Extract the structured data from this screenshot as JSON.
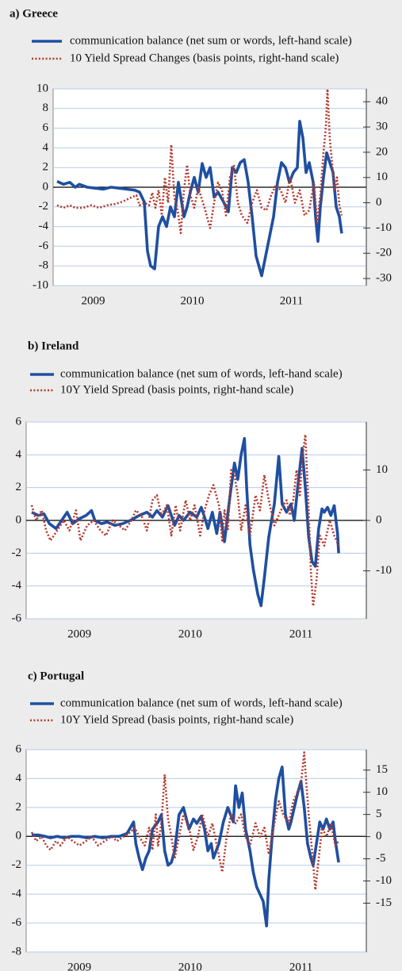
{
  "chart_data": [
    {
      "type": "line",
      "title": "a) Greece",
      "xlim": [
        2009.096,
        2012.256
      ],
      "xticks": [
        {
          "value": 2009.5,
          "label": "2009"
        },
        {
          "value": 2010.5,
          "label": "2010"
        },
        {
          "value": 2011.5,
          "label": "2011"
        }
      ],
      "ylim": [
        -10,
        10
      ],
      "yticks": [
        10,
        8,
        6,
        4,
        2,
        0,
        -2,
        -4,
        -6,
        -8,
        -10
      ],
      "y2lim": [
        -32.8,
        45.1
      ],
      "y2ticks": [
        40,
        30,
        20,
        10,
        0,
        -10,
        -20,
        -30
      ],
      "grid": true,
      "series": [
        {
          "name": "communication balance (net sum or words, left-hand scale)",
          "color": "#1f4fa0",
          "style": "solid",
          "x": [
            2009.136,
            2009.2,
            2009.264,
            2009.32,
            2009.36,
            2009.44,
            2009.52,
            2009.6,
            2009.68,
            2009.76,
            2009.84,
            2009.92,
            2009.968,
            2010.016,
            2010.048,
            2010.08,
            2010.12,
            2010.16,
            2010.2,
            2010.24,
            2010.28,
            2010.32,
            2010.36,
            2010.384,
            2010.416,
            2010.448,
            2010.48,
            2010.52,
            2010.56,
            2010.6,
            2010.64,
            2010.68,
            2010.72,
            2010.76,
            2010.816,
            2010.864,
            2010.904,
            2010.944,
            2010.984,
            2011.024,
            2011.064,
            2011.104,
            2011.144,
            2011.2,
            2011.24,
            2011.28,
            2011.32,
            2011.36,
            2011.4,
            2011.44,
            2011.48,
            2011.52,
            2011.56,
            2011.584,
            2011.616,
            2011.648,
            2011.68,
            2011.72,
            2011.744,
            2011.768,
            2011.792,
            2011.824,
            2011.856,
            2011.888,
            2011.92,
            2011.952,
            2011.984,
            2012.008
          ],
          "values": [
            0.6,
            0.3,
            0.5,
            0.0,
            0.3,
            0.0,
            -0.1,
            -0.2,
            0.0,
            -0.1,
            -0.2,
            -0.3,
            -0.5,
            -1.5,
            -6.5,
            -8.0,
            -8.3,
            -4,
            -3,
            -4,
            -2,
            -3,
            0.5,
            -1,
            -3,
            -2,
            -0.5,
            1.0,
            -0.5,
            2.4,
            1,
            2,
            -1,
            -0.5,
            -1.5,
            -2.5,
            2,
            1.5,
            2.5,
            2.8,
            0.5,
            -3,
            -7,
            -9,
            -7,
            -5,
            -3,
            0.5,
            2.5,
            2,
            0.5,
            1.5,
            2,
            6.7,
            5,
            1.5,
            2.5,
            0.5,
            -3,
            -5.5,
            -2,
            1,
            3.5,
            2.5,
            1.5,
            -2,
            -3,
            -4.7
          ]
        },
        {
          "name": "10 Yield Spread Changes (basis points, right-hand scale)",
          "color": "#b5382b",
          "style": "dotted",
          "axis": "y2",
          "x": [
            2009.136,
            2009.2,
            2009.264,
            2009.32,
            2009.4,
            2009.48,
            2009.56,
            2009.64,
            2009.72,
            2009.8,
            2009.88,
            2009.936,
            2009.968,
            2010.016,
            2010.064,
            2010.096,
            2010.128,
            2010.16,
            2010.192,
            2010.224,
            2010.256,
            2010.288,
            2010.32,
            2010.352,
            2010.384,
            2010.416,
            2010.448,
            2010.48,
            2010.52,
            2010.56,
            2010.624,
            2010.68,
            2010.72,
            2010.76,
            2010.8,
            2010.84,
            2010.88,
            2010.92,
            2010.96,
            2011.0,
            2011.056,
            2011.104,
            2011.152,
            2011.2,
            2011.248,
            2011.296,
            2011.344,
            2011.392,
            2011.44,
            2011.488,
            2011.536,
            2011.584,
            2011.632,
            2011.68,
            2011.728,
            2011.76,
            2011.792,
            2011.824,
            2011.848,
            2011.864,
            2011.888,
            2011.912,
            2011.936,
            2011.96,
            2011.984,
            2012.008
          ],
          "values": [
            -1,
            -2,
            -1,
            -2,
            -2,
            -1,
            -2,
            -1,
            -0.5,
            0.5,
            2,
            3,
            -1,
            0,
            -1,
            4,
            -2,
            5,
            -5,
            10,
            0,
            23,
            2,
            -3,
            -12,
            5,
            15,
            3,
            -2,
            6,
            -2,
            -10,
            0,
            8,
            5,
            -5,
            10,
            15,
            0,
            -5,
            -8,
            0,
            5,
            -2,
            -3,
            3,
            7,
            5,
            0,
            10,
            0,
            5,
            -5,
            -3,
            8,
            -8,
            3,
            20,
            30,
            45,
            25,
            15,
            5,
            10,
            -1,
            -5
          ]
        }
      ]
    },
    {
      "type": "line",
      "title": "b) Ireland",
      "xlim": [
        2009.02,
        2012.09
      ],
      "xticks": [
        {
          "value": 2009.5,
          "label": "2009"
        },
        {
          "value": 2010.5,
          "label": "2010"
        },
        {
          "value": 2011.5,
          "label": "2011"
        }
      ],
      "ylim": [
        -6,
        6
      ],
      "yticks": [
        6,
        4,
        2,
        0,
        -2,
        -4,
        -6
      ],
      "y2lim": [
        -19.5,
        19.5
      ],
      "y2ticks": [
        10,
        0,
        -10
      ],
      "grid": true,
      "series": [
        {
          "name": "communication balance (net sum of words, left-hand scale)",
          "color": "#1f4fa0",
          "style": "solid",
          "x": [
            2009.07,
            2009.13,
            2009.18,
            2009.23,
            2009.29,
            2009.34,
            2009.39,
            2009.44,
            2009.5,
            2009.56,
            2009.61,
            2009.64,
            2009.7,
            2009.75,
            2009.82,
            2009.89,
            2009.96,
            2010.04,
            2010.11,
            2010.16,
            2010.2,
            2010.25,
            2010.3,
            2010.36,
            2010.4,
            2010.44,
            2010.5,
            2010.56,
            2010.6,
            2010.63,
            2010.66,
            2010.7,
            2010.74,
            2010.77,
            2010.81,
            2010.86,
            2010.9,
            2010.93,
            2010.96,
            2010.99,
            2011.01,
            2011.04,
            2011.07,
            2011.11,
            2011.14,
            2011.17,
            2011.21,
            2011.26,
            2011.3,
            2011.33,
            2011.37,
            2011.41,
            2011.44,
            2011.47,
            2011.51,
            2011.54,
            2011.57,
            2011.6,
            2011.63,
            2011.66,
            2011.69,
            2011.71,
            2011.74,
            2011.77,
            2011.8,
            2011.83,
            2011.84
          ],
          "values": [
            0.5,
            0.3,
            0.4,
            -0.2,
            -0.5,
            0.0,
            0.5,
            -0.2,
            0.1,
            0.3,
            0.6,
            0.0,
            -0.2,
            -0.1,
            -0.3,
            -0.2,
            0.0,
            0.3,
            0.5,
            0.2,
            0.6,
            0.2,
            0.9,
            -0.3,
            0.3,
            0.0,
            0.5,
            0.2,
            0.8,
            0.2,
            -0.5,
            0.5,
            -0.8,
            0.5,
            -1.3,
            1.5,
            3.5,
            2.5,
            4,
            5,
            2,
            -1.5,
            -3,
            -4.5,
            -5.2,
            -3.5,
            -1,
            1,
            3.9,
            1,
            0.5,
            1,
            0,
            2,
            4.4,
            2,
            -1,
            -2.5,
            -2.8,
            -0.5,
            0.7,
            0.5,
            0.8,
            0.3,
            0.9,
            -0.8,
            -2
          ]
        },
        {
          "name": "10Y Yield Spread (basis points, right-hand scale)",
          "color": "#b5382b",
          "style": "dotted",
          "axis": "y2",
          "x": [
            2009.07,
            2009.11,
            2009.16,
            2009.2,
            2009.24,
            2009.3,
            2009.36,
            2009.41,
            2009.47,
            2009.51,
            2009.57,
            2009.63,
            2009.69,
            2009.74,
            2009.8,
            2009.86,
            2009.91,
            2009.97,
            2010.01,
            2010.06,
            2010.11,
            2010.16,
            2010.2,
            2010.24,
            2010.29,
            2010.33,
            2010.37,
            2010.41,
            2010.46,
            2010.5,
            2010.54,
            2010.59,
            2010.63,
            2010.67,
            2010.71,
            2010.76,
            2010.79,
            2010.81,
            2010.84,
            2010.87,
            2010.9,
            2010.93,
            2010.96,
            2011.0,
            2011.04,
            2011.09,
            2011.13,
            2011.17,
            2011.21,
            2011.26,
            2011.3,
            2011.34,
            2011.37,
            2011.4,
            2011.43,
            2011.46,
            2011.49,
            2011.51,
            2011.54,
            2011.57,
            2011.59,
            2011.61,
            2011.64,
            2011.67,
            2011.71,
            2011.76,
            2011.8,
            2011.84
          ],
          "values": [
            3,
            0,
            2,
            -2,
            -4,
            -2,
            0,
            -2,
            2,
            -4,
            -1,
            0,
            -2,
            -3,
            0,
            -1,
            -2,
            0,
            2,
            1,
            -2,
            4,
            5,
            1,
            3,
            -3,
            3,
            -2,
            4,
            0,
            3,
            -3,
            2,
            5,
            7,
            3,
            -4,
            2,
            -2,
            10,
            9,
            5,
            -2,
            3,
            -3,
            5,
            2,
            9,
            4,
            -1,
            1,
            3,
            4,
            1,
            4,
            10,
            5,
            12,
            17,
            2,
            -10,
            -17,
            -12,
            -3,
            -5,
            0,
            -3,
            -5
          ]
        }
      ]
    },
    {
      "type": "line",
      "title": "c) Portugal",
      "xlim": [
        2009.02,
        2012.09
      ],
      "xticks": [
        {
          "value": 2009.5,
          "label": "2009"
        },
        {
          "value": 2010.5,
          "label": "2010"
        },
        {
          "value": 2011.5,
          "label": "2011"
        }
      ],
      "ylim": [
        -8,
        6
      ],
      "yticks": [
        6,
        4,
        2,
        0,
        -2,
        -4,
        -6,
        -8
      ],
      "y2lim": [
        -26,
        19.6
      ],
      "y2ticks": [
        15,
        10,
        5,
        0,
        -5,
        -10,
        -15
      ],
      "grid": true,
      "series": [
        {
          "name": "communication balance (net sum of words, left-hand scale)",
          "color": "#1f4fa0",
          "style": "solid",
          "x": [
            2009.07,
            2009.13,
            2009.19,
            2009.24,
            2009.3,
            2009.36,
            2009.43,
            2009.5,
            2009.57,
            2009.64,
            2009.71,
            2009.79,
            2009.86,
            2009.93,
            2009.96,
            2009.99,
            2010.01,
            2010.04,
            2010.07,
            2010.1,
            2010.13,
            2010.16,
            2010.19,
            2010.21,
            2010.24,
            2010.27,
            2010.3,
            2010.33,
            2010.36,
            2010.4,
            2010.44,
            2010.49,
            2010.53,
            2010.56,
            2010.6,
            2010.63,
            2010.66,
            2010.69,
            2010.71,
            2010.76,
            2010.8,
            2010.84,
            2010.89,
            2010.91,
            2010.94,
            2010.97,
            2011.0,
            2011.04,
            2011.07,
            2011.1,
            2011.13,
            2011.16,
            2011.19,
            2011.21,
            2011.24,
            2011.27,
            2011.3,
            2011.33,
            2011.36,
            2011.39,
            2011.41,
            2011.44,
            2011.47,
            2011.5,
            2011.53,
            2011.56,
            2011.59,
            2011.61,
            2011.64,
            2011.67,
            2011.7,
            2011.73,
            2011.76,
            2011.79,
            2011.81,
            2011.84
          ],
          "values": [
            0.1,
            0.1,
            0.0,
            -0.1,
            0.0,
            -0.1,
            0.0,
            0.0,
            -0.1,
            0.0,
            -0.1,
            0.0,
            0.0,
            0.2,
            0.6,
            1.0,
            -0.5,
            -1.5,
            -2.3,
            -1.5,
            -1,
            0.5,
            0.8,
            1.0,
            1.5,
            -1,
            -2,
            -1.8,
            -1,
            1.5,
            2,
            0.5,
            1.2,
            0.9,
            1.4,
            0.5,
            -1,
            -0.5,
            -1.5,
            -0.5,
            1,
            2,
            1,
            3.5,
            2,
            3,
            0.5,
            -1,
            -2.5,
            -3.5,
            -4,
            -4.5,
            -6.2,
            -3,
            0,
            2.5,
            4,
            4.8,
            1.5,
            0.5,
            1,
            2,
            3,
            3.8,
            2,
            -0.5,
            -1.5,
            -2,
            -0.5,
            1,
            0.5,
            1.2,
            0.5,
            1,
            -0.3,
            -1.8
          ]
        },
        {
          "name": "10Y Yield Spread (basis points, right-hand scale)",
          "color": "#b5382b",
          "style": "dotted",
          "axis": "y2",
          "x": [
            2009.07,
            2009.11,
            2009.16,
            2009.2,
            2009.24,
            2009.29,
            2009.33,
            2009.39,
            2009.44,
            2009.5,
            2009.56,
            2009.61,
            2009.67,
            2009.73,
            2009.79,
            2009.84,
            2009.9,
            2009.96,
            2010.0,
            2010.04,
            2010.09,
            2010.13,
            2010.16,
            2010.19,
            2010.21,
            2010.24,
            2010.27,
            2010.3,
            2010.33,
            2010.36,
            2010.4,
            2010.44,
            2010.49,
            2010.53,
            2010.57,
            2010.61,
            2010.66,
            2010.7,
            2010.74,
            2010.79,
            2010.83,
            2010.87,
            2010.91,
            2010.96,
            2011.0,
            2011.04,
            2011.09,
            2011.13,
            2011.17,
            2011.21,
            2011.26,
            2011.3,
            2011.34,
            2011.39,
            2011.43,
            2011.47,
            2011.5,
            2011.53,
            2011.54,
            2011.57,
            2011.6,
            2011.63,
            2011.66,
            2011.69,
            2011.73,
            2011.77,
            2011.81,
            2011.84
          ],
          "values": [
            1,
            -1,
            0,
            -2,
            -3,
            -1,
            -2,
            0,
            -1,
            -2,
            -1,
            0,
            -2,
            -1,
            0,
            -1,
            0,
            1,
            2,
            0,
            -2,
            2,
            -3,
            5,
            -2,
            3,
            14,
            4,
            0,
            -5,
            0,
            5,
            2,
            -3,
            0,
            5,
            0,
            3,
            -2,
            -8,
            0,
            5,
            3,
            5,
            0,
            -2,
            3,
            0,
            2,
            -4,
            3,
            8,
            5,
            3,
            8,
            10,
            12,
            19,
            15,
            5,
            -3,
            -12,
            -5,
            2,
            0,
            3,
            -2,
            -1
          ]
        }
      ]
    }
  ]
}
